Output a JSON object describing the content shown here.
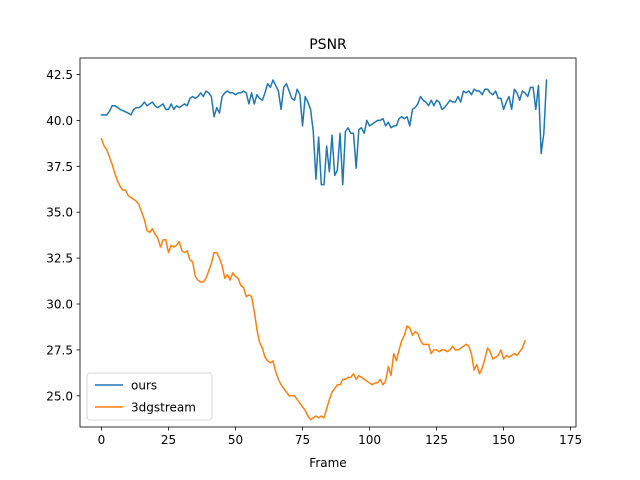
{
  "chart_data": {
    "type": "line",
    "title": "PSNR",
    "xlabel": "Frame",
    "ylabel": "",
    "xlim": [
      -8,
      177
    ],
    "ylim": [
      23.3,
      43.4
    ],
    "xticks": [
      0,
      25,
      50,
      75,
      100,
      125,
      150,
      175
    ],
    "yticks": [
      25.0,
      27.5,
      30.0,
      32.5,
      35.0,
      37.5,
      40.0,
      42.5
    ],
    "xtick_labels": [
      "0",
      "25",
      "50",
      "75",
      "100",
      "125",
      "150",
      "175"
    ],
    "ytick_labels": [
      "25.0",
      "27.5",
      "30.0",
      "32.5",
      "35.0",
      "37.5",
      "40.0",
      "42.5"
    ],
    "grid": false,
    "legend_position": "lower-left",
    "series": [
      {
        "name": "ours",
        "color": "#1f77b4",
        "points": [
          [
            0,
            40.3
          ],
          [
            2,
            40.3
          ],
          [
            3,
            40.5
          ],
          [
            4,
            40.8
          ],
          [
            5,
            40.8
          ],
          [
            7,
            40.6
          ],
          [
            10,
            40.4
          ],
          [
            11,
            40.3
          ],
          [
            12,
            40.6
          ],
          [
            13,
            40.7
          ],
          [
            14,
            40.7
          ],
          [
            15,
            40.8
          ],
          [
            16,
            41.0
          ],
          [
            17,
            40.8
          ],
          [
            18,
            40.9
          ],
          [
            19,
            41.0
          ],
          [
            20,
            40.8
          ],
          [
            21,
            40.7
          ],
          [
            22,
            40.8
          ],
          [
            23,
            40.9
          ],
          [
            24,
            40.6
          ],
          [
            25,
            40.6
          ],
          [
            26,
            40.9
          ],
          [
            27,
            40.6
          ],
          [
            28,
            40.8
          ],
          [
            29,
            40.7
          ],
          [
            30,
            40.8
          ],
          [
            31,
            40.9
          ],
          [
            32,
            40.8
          ],
          [
            33,
            41.2
          ],
          [
            34,
            41.3
          ],
          [
            35,
            41.2
          ],
          [
            36,
            41.3
          ],
          [
            37,
            41.5
          ],
          [
            38,
            41.3
          ],
          [
            39,
            41.6
          ],
          [
            40,
            41.5
          ],
          [
            41,
            41.3
          ],
          [
            42,
            40.2
          ],
          [
            43,
            40.7
          ],
          [
            44,
            40.4
          ],
          [
            45,
            41.3
          ],
          [
            46,
            41.5
          ],
          [
            47,
            41.6
          ],
          [
            48,
            41.5
          ],
          [
            49,
            41.5
          ],
          [
            50,
            41.4
          ],
          [
            51,
            41.5
          ],
          [
            52,
            41.5
          ],
          [
            53,
            41.6
          ],
          [
            54,
            41.5
          ],
          [
            55,
            40.9
          ],
          [
            56,
            41.5
          ],
          [
            57,
            40.9
          ],
          [
            58,
            41.4
          ],
          [
            59,
            41.2
          ],
          [
            60,
            41.1
          ],
          [
            61,
            41.5
          ],
          [
            62,
            42.0
          ],
          [
            63,
            41.8
          ],
          [
            64,
            42.2
          ],
          [
            65,
            41.9
          ],
          [
            66,
            41.6
          ],
          [
            67,
            40.6
          ],
          [
            68,
            41.8
          ],
          [
            69,
            42.0
          ],
          [
            70,
            41.6
          ],
          [
            71,
            41.2
          ],
          [
            72,
            41.1
          ],
          [
            73,
            41.7
          ],
          [
            74,
            41.4
          ],
          [
            75,
            39.7
          ],
          [
            76,
            41.3
          ],
          [
            77,
            41.0
          ],
          [
            78,
            40.6
          ],
          [
            79,
            39.4
          ],
          [
            80,
            36.8
          ],
          [
            81,
            39.1
          ],
          [
            82,
            36.5
          ],
          [
            83,
            36.5
          ],
          [
            84,
            38.6
          ],
          [
            85,
            37.2
          ],
          [
            86,
            39.2
          ],
          [
            87,
            37.0
          ],
          [
            88,
            37.3
          ],
          [
            89,
            39.3
          ],
          [
            90,
            36.5
          ],
          [
            91,
            39.4
          ],
          [
            92,
            39.6
          ],
          [
            93,
            39.3
          ],
          [
            94,
            39.3
          ],
          [
            95,
            37.4
          ],
          [
            96,
            39.5
          ],
          [
            97,
            39.6
          ],
          [
            98,
            39.3
          ],
          [
            99,
            40.0
          ],
          [
            100,
            39.7
          ],
          [
            101,
            39.8
          ],
          [
            102,
            39.9
          ],
          [
            103,
            40.0
          ],
          [
            104,
            40.0
          ],
          [
            105,
            40.1
          ],
          [
            106,
            39.7
          ],
          [
            107,
            39.9
          ],
          [
            108,
            39.6
          ],
          [
            109,
            39.7
          ],
          [
            110,
            39.7
          ],
          [
            111,
            40.1
          ],
          [
            112,
            40.2
          ],
          [
            113,
            40.1
          ],
          [
            114,
            40.2
          ],
          [
            115,
            39.7
          ],
          [
            116,
            40.6
          ],
          [
            117,
            40.7
          ],
          [
            118,
            40.9
          ],
          [
            119,
            41.3
          ],
          [
            120,
            41.1
          ],
          [
            121,
            41.0
          ],
          [
            122,
            40.8
          ],
          [
            123,
            41.1
          ],
          [
            124,
            40.8
          ],
          [
            125,
            41.1
          ],
          [
            126,
            41.0
          ],
          [
            127,
            40.6
          ],
          [
            128,
            40.7
          ],
          [
            129,
            40.9
          ],
          [
            130,
            41.1
          ],
          [
            131,
            41.0
          ],
          [
            132,
            41.0
          ],
          [
            133,
            41.3
          ],
          [
            134,
            41.0
          ],
          [
            135,
            41.6
          ],
          [
            136,
            41.5
          ],
          [
            137,
            41.6
          ],
          [
            138,
            41.4
          ],
          [
            139,
            41.7
          ],
          [
            140,
            41.6
          ],
          [
            141,
            41.6
          ],
          [
            142,
            41.4
          ],
          [
            143,
            41.7
          ],
          [
            144,
            41.7
          ],
          [
            145,
            41.5
          ],
          [
            146,
            41.4
          ],
          [
            147,
            41.6
          ],
          [
            148,
            41.2
          ],
          [
            149,
            41.2
          ],
          [
            150,
            40.6
          ],
          [
            151,
            41.0
          ],
          [
            152,
            41.3
          ],
          [
            153,
            40.6
          ],
          [
            154,
            41.7
          ],
          [
            155,
            41.5
          ],
          [
            156,
            41.1
          ],
          [
            157,
            41.6
          ],
          [
            158,
            41.5
          ],
          [
            159,
            41.3
          ],
          [
            160,
            41.8
          ],
          [
            161,
            41.8
          ],
          [
            162,
            40.6
          ],
          [
            163,
            41.9
          ],
          [
            164,
            38.2
          ],
          [
            165,
            39.3
          ],
          [
            166,
            42.2
          ]
        ]
      },
      {
        "name": "3dgstream",
        "color": "#ff7f0e",
        "points": [
          [
            0,
            39.0
          ],
          [
            1,
            38.6
          ],
          [
            2,
            38.4
          ],
          [
            3,
            38.0
          ],
          [
            4,
            37.6
          ],
          [
            5,
            37.1
          ],
          [
            6,
            36.7
          ],
          [
            7,
            36.4
          ],
          [
            8,
            36.2
          ],
          [
            9,
            36.2
          ],
          [
            10,
            35.9
          ],
          [
            11,
            35.8
          ],
          [
            12,
            35.7
          ],
          [
            13,
            35.6
          ],
          [
            14,
            35.4
          ],
          [
            15,
            35.0
          ],
          [
            16,
            34.6
          ],
          [
            17,
            34.0
          ],
          [
            18,
            33.9
          ],
          [
            19,
            34.1
          ],
          [
            20,
            33.8
          ],
          [
            21,
            33.6
          ],
          [
            22,
            33.1
          ],
          [
            23,
            33.5
          ],
          [
            24,
            33.5
          ],
          [
            25,
            32.8
          ],
          [
            26,
            33.2
          ],
          [
            27,
            33.1
          ],
          [
            28,
            33.2
          ],
          [
            29,
            33.4
          ],
          [
            30,
            32.9
          ],
          [
            31,
            32.8
          ],
          [
            32,
            32.9
          ],
          [
            33,
            32.4
          ],
          [
            34,
            32.3
          ],
          [
            35,
            31.5
          ],
          [
            36,
            31.3
          ],
          [
            37,
            31.2
          ],
          [
            38,
            31.2
          ],
          [
            39,
            31.4
          ],
          [
            40,
            31.8
          ],
          [
            41,
            32.2
          ],
          [
            42,
            32.8
          ],
          [
            43,
            32.8
          ],
          [
            44,
            32.5
          ],
          [
            45,
            32.1
          ],
          [
            46,
            31.4
          ],
          [
            47,
            31.6
          ],
          [
            48,
            31.3
          ],
          [
            49,
            31.7
          ],
          [
            50,
            31.5
          ],
          [
            51,
            31.4
          ],
          [
            52,
            31.0
          ],
          [
            53,
            30.9
          ],
          [
            54,
            30.4
          ],
          [
            55,
            30.5
          ],
          [
            56,
            30.4
          ],
          [
            57,
            29.6
          ],
          [
            58,
            28.6
          ],
          [
            59,
            27.9
          ],
          [
            60,
            27.6
          ],
          [
            61,
            27.1
          ],
          [
            62,
            26.9
          ],
          [
            63,
            26.8
          ],
          [
            64,
            26.9
          ],
          [
            65,
            26.3
          ],
          [
            66,
            25.9
          ],
          [
            67,
            25.6
          ],
          [
            68,
            25.4
          ],
          [
            69,
            25.2
          ],
          [
            70,
            25.0
          ],
          [
            71,
            25.0
          ],
          [
            72,
            25.0
          ],
          [
            73,
            24.8
          ],
          [
            74,
            24.6
          ],
          [
            75,
            24.4
          ],
          [
            76,
            24.2
          ],
          [
            77,
            23.9
          ],
          [
            78,
            23.7
          ],
          [
            79,
            23.8
          ],
          [
            80,
            23.9
          ],
          [
            81,
            23.8
          ],
          [
            82,
            23.9
          ],
          [
            83,
            23.8
          ],
          [
            84,
            24.3
          ],
          [
            85,
            24.8
          ],
          [
            86,
            25.2
          ],
          [
            87,
            25.4
          ],
          [
            88,
            25.6
          ],
          [
            89,
            25.6
          ],
          [
            90,
            25.9
          ],
          [
            91,
            25.9
          ],
          [
            92,
            26.0
          ],
          [
            93,
            26.0
          ],
          [
            94,
            26.2
          ],
          [
            95,
            25.9
          ],
          [
            96,
            26.1
          ],
          [
            97,
            26.0
          ],
          [
            98,
            25.9
          ],
          [
            99,
            25.8
          ],
          [
            100,
            25.7
          ],
          [
            101,
            25.6
          ],
          [
            102,
            25.7
          ],
          [
            103,
            25.7
          ],
          [
            104,
            25.9
          ],
          [
            105,
            25.6
          ],
          [
            106,
            25.8
          ],
          [
            107,
            26.6
          ],
          [
            108,
            26.1
          ],
          [
            109,
            27.3
          ],
          [
            110,
            26.9
          ],
          [
            111,
            27.5
          ],
          [
            112,
            28.0
          ],
          [
            113,
            28.3
          ],
          [
            114,
            28.8
          ],
          [
            115,
            28.7
          ],
          [
            116,
            28.3
          ],
          [
            117,
            28.5
          ],
          [
            118,
            28.4
          ],
          [
            119,
            28.0
          ],
          [
            120,
            27.8
          ],
          [
            121,
            27.8
          ],
          [
            122,
            27.8
          ],
          [
            123,
            27.3
          ],
          [
            124,
            27.5
          ],
          [
            125,
            27.5
          ],
          [
            126,
            27.4
          ],
          [
            127,
            27.5
          ],
          [
            128,
            27.5
          ],
          [
            129,
            27.4
          ],
          [
            130,
            27.5
          ],
          [
            131,
            27.7
          ],
          [
            132,
            27.5
          ],
          [
            133,
            27.5
          ],
          [
            134,
            27.6
          ],
          [
            135,
            27.7
          ],
          [
            136,
            27.8
          ],
          [
            137,
            27.7
          ],
          [
            138,
            27.3
          ],
          [
            139,
            26.4
          ],
          [
            140,
            26.7
          ],
          [
            141,
            26.2
          ],
          [
            142,
            26.5
          ],
          [
            143,
            27.0
          ],
          [
            144,
            27.6
          ],
          [
            145,
            27.4
          ],
          [
            146,
            27.0
          ],
          [
            147,
            27.1
          ],
          [
            148,
            27.2
          ],
          [
            149,
            27.5
          ],
          [
            150,
            27.0
          ],
          [
            151,
            27.2
          ],
          [
            152,
            27.1
          ],
          [
            153,
            27.2
          ],
          [
            154,
            27.3
          ],
          [
            155,
            27.2
          ],
          [
            156,
            27.4
          ],
          [
            157,
            27.6
          ],
          [
            158,
            28.0
          ]
        ]
      }
    ]
  }
}
